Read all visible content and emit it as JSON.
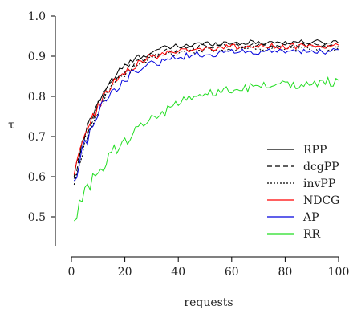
{
  "chart_data": {
    "type": "line",
    "title": "",
    "xlabel": "requests",
    "ylabel": "τ",
    "xlim": [
      0,
      103
    ],
    "ylim": [
      0.42,
      1.02
    ],
    "xticks": [
      0,
      20,
      40,
      60,
      80,
      100
    ],
    "yticks": [
      0.5,
      0.6,
      0.7,
      0.8,
      0.9,
      1.0
    ],
    "xtick_labels": [
      "0",
      "20",
      "40",
      "60",
      "80",
      "100"
    ],
    "ytick_labels": [
      "0.5",
      "0.6",
      "0.7",
      "0.8",
      "0.9",
      "1.0"
    ],
    "grid": false,
    "legend_position": "right",
    "series": [
      {
        "name": "RPP",
        "color": "#000000",
        "dash": "solid",
        "start": 0.6,
        "end": 0.935,
        "rate": 0.09,
        "noise": 0.006
      },
      {
        "name": "dcgPP",
        "color": "#000000",
        "dash": "dashed",
        "start": 0.595,
        "end": 0.928,
        "rate": 0.088,
        "noise": 0.006
      },
      {
        "name": "invPP",
        "color": "#000000",
        "dash": "dotted",
        "start": 0.58,
        "end": 0.92,
        "rate": 0.087,
        "noise": 0.006
      },
      {
        "name": "NDCG",
        "color": "#ff0000",
        "dash": "solid",
        "start": 0.605,
        "end": 0.925,
        "rate": 0.085,
        "noise": 0.007
      },
      {
        "name": "AP",
        "color": "#0000dd",
        "dash": "solid",
        "start": 0.59,
        "end": 0.912,
        "rate": 0.08,
        "noise": 0.008
      },
      {
        "name": "RR",
        "color": "#22dd22",
        "dash": "solid",
        "start": 0.49,
        "end": 0.84,
        "rate": 0.045,
        "noise": 0.012
      }
    ]
  }
}
